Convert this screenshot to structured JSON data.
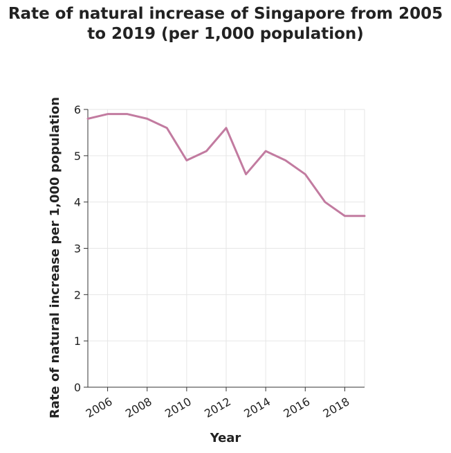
{
  "chart_data": {
    "type": "line",
    "title": "Rate of natural increase of Singapore from 2005 to 2019 (per 1,000 population)",
    "xlabel": "Year",
    "ylabel": "Rate of natural increase per 1,000 population",
    "x": [
      2005,
      2006,
      2007,
      2008,
      2009,
      2010,
      2011,
      2012,
      2013,
      2014,
      2015,
      2016,
      2017,
      2018,
      2019
    ],
    "series": [
      {
        "values": [
          5.8,
          5.9,
          5.9,
          5.8,
          5.6,
          4.9,
          5.1,
          5.6,
          4.6,
          5.1,
          4.9,
          4.6,
          4.0,
          3.7,
          3.7
        ]
      }
    ],
    "xticks": [
      "2006",
      "2008",
      "2010",
      "2012",
      "2014",
      "2016",
      "2018"
    ],
    "yticks": [
      "0",
      "1",
      "2",
      "3",
      "4",
      "5",
      "6"
    ],
    "xlim": [
      2005,
      2019
    ],
    "ylim": [
      0,
      6
    ],
    "grid": true,
    "line_color": "#c27ba0",
    "grid_color": "#e6e6e6"
  }
}
